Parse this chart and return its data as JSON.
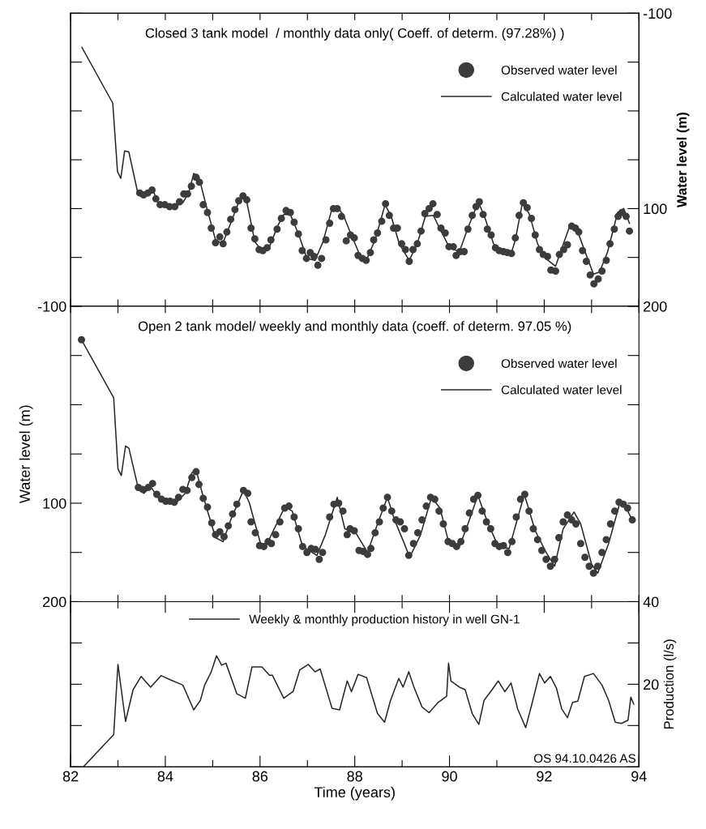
{
  "chart_data": [
    {
      "type": "line",
      "title": "Closed 3 tank model  / monthly data only( Coeff. of determ. (97.28%) )",
      "y2label": "Water level (m)",
      "xlim": [
        82,
        94
      ],
      "xticks": [
        {
          "value": 82,
          "label": null
        },
        {
          "value": 83,
          "label": null
        },
        {
          "value": 84,
          "label": null
        },
        {
          "value": 85,
          "label": null
        },
        {
          "value": 86,
          "label": null
        },
        {
          "value": 87,
          "label": null
        },
        {
          "value": 88,
          "label": null
        },
        {
          "value": 89,
          "label": null
        },
        {
          "value": 90,
          "label": null
        },
        {
          "value": 91,
          "label": null
        },
        {
          "value": 92,
          "label": null
        },
        {
          "value": 93,
          "label": null
        },
        {
          "value": 94,
          "label": null
        }
      ],
      "y2lim": [
        200,
        -100
      ],
      "y2ticks": [
        -100,
        {
          "value": -50,
          "label": null
        },
        {
          "value": 0,
          "label": null
        },
        {
          "value": 50,
          "label": null
        },
        100,
        {
          "value": 150,
          "label": null
        },
        200
      ],
      "tick_labels": "y",
      "legend": "top right",
      "grid": false,
      "series": [
        {
          "name": "Observed water level",
          "type": "scatter",
          "axis": "y2",
          "marker": "circle",
          "color": "#3c3c3c",
          "x": [
            83.46,
            83.54,
            83.63,
            83.72,
            83.8,
            83.89,
            83.99,
            84.09,
            84.2,
            84.3,
            84.39,
            84.47,
            84.55,
            84.65,
            84.72,
            84.8,
            84.89,
            84.97,
            85.06,
            85.15,
            85.22,
            85.3,
            85.38,
            85.47,
            85.55,
            85.64,
            85.72,
            85.81,
            85.89,
            85.98,
            86.06,
            86.15,
            86.23,
            86.36,
            86.45,
            86.55,
            86.64,
            86.72,
            86.81,
            86.89,
            86.98,
            87.06,
            87.14,
            87.22,
            87.3,
            87.39,
            87.47,
            87.55,
            87.63,
            87.72,
            87.82,
            87.91,
            87.99,
            88.07,
            88.16,
            88.24,
            88.33,
            88.4,
            88.48,
            88.57,
            88.65,
            88.73,
            88.82,
            88.9,
            88.99,
            89.07,
            89.15,
            89.23,
            89.32,
            89.4,
            89.48,
            89.57,
            89.65,
            89.74,
            89.82,
            89.91,
            89.99,
            90.08,
            90.14,
            90.22,
            90.31,
            90.39,
            90.48,
            90.56,
            90.63,
            90.71,
            90.8,
            90.88,
            90.97,
            91.05,
            91.14,
            91.22,
            91.31,
            91.39,
            91.47,
            91.56,
            91.64,
            91.73,
            91.81,
            91.9,
            91.98,
            92.07,
            92.14,
            92.24,
            92.32,
            92.41,
            92.49,
            92.58,
            92.66,
            92.73,
            92.81,
            92.89,
            92.97,
            93.05,
            93.14,
            93.22,
            93.31,
            93.39,
            93.48,
            93.56,
            93.64,
            93.73,
            93.8
          ],
          "values": [
            84,
            86,
            84,
            81,
            90,
            96,
            96,
            98,
            98,
            93,
            85,
            85,
            77,
            68,
            73,
            96,
            104,
            120,
            135,
            129,
            136,
            124,
            111,
            101,
            92,
            87,
            91,
            120,
            131,
            142,
            143,
            140,
            132,
            121,
            110,
            102,
            104,
            114,
            126,
            143,
            151,
            145,
            149,
            158,
            151,
            132,
            115,
            100,
            100,
            108,
            133,
            127,
            130,
            148,
            151,
            153,
            145,
            132,
            125,
            113,
            95,
            107,
            120,
            120,
            136,
            142,
            154,
            142,
            136,
            123,
            105,
            100,
            95,
            106,
            120,
            125,
            139,
            139,
            148,
            144,
            144,
            121,
            107,
            98,
            93,
            106,
            121,
            127,
            140,
            143,
            144,
            145,
            146,
            130,
            107,
            94,
            99,
            110,
            127,
            142,
            147,
            149,
            163,
            164,
            147,
            142,
            137,
            118,
            120,
            124,
            143,
            154,
            168,
            177,
            172,
            164,
            153,
            136,
            121,
            108,
            104,
            108,
            123
          ]
        },
        {
          "name": "Calculated water level",
          "type": "line",
          "axis": "y2",
          "color": "#262626",
          "x": [
            82.24,
            82.89,
            82.99,
            83.06,
            83.14,
            83.23,
            83.41,
            83.57,
            83.73,
            83.88,
            84.2,
            84.37,
            84.5,
            84.6,
            84.71,
            84.89,
            85.06,
            85.21,
            85.38,
            85.6,
            85.72,
            85.89,
            86.02,
            86.19,
            86.38,
            86.5,
            86.64,
            86.82,
            86.99,
            87.16,
            87.33,
            87.52,
            87.64,
            87.77,
            87.91,
            88.11,
            88.26,
            88.43,
            88.64,
            88.77,
            88.94,
            89.15,
            89.32,
            89.49,
            89.66,
            89.8,
            90.0,
            90.21,
            90.38,
            90.61,
            90.76,
            90.93,
            91.09,
            91.31,
            91.39,
            91.54,
            91.69,
            91.86,
            92.03,
            92.24,
            92.42,
            92.56,
            92.66,
            92.83,
            93.04,
            93.17,
            93.34,
            93.55,
            93.68,
            93.8
          ],
          "values": [
            -65,
            -8,
            62,
            69,
            41,
            42,
            82,
            85,
            80,
            98,
            98,
            94,
            83,
            64,
            68,
            102,
            132,
            136,
            115,
            87,
            93,
            134,
            142,
            140,
            117,
            106,
            106,
            127,
            151,
            153,
            134,
            100,
            98,
            108,
            125,
            148,
            151,
            132,
            96,
            108,
            136,
            153,
            136,
            108,
            107,
            121,
            140,
            144,
            121,
            93,
            111,
            136,
            144,
            145,
            132,
            94,
            106,
            136,
            151,
            159,
            134,
            115,
            117,
            140,
            167,
            165,
            144,
            104,
            100,
            115
          ]
        }
      ]
    },
    {
      "type": "line",
      "title": "Open 2 tank model/ weekly and monthly data (coeff. of determ. 97.05 %)",
      "ylabel": "Water level (m)",
      "xlim": [
        82,
        94
      ],
      "xticks": [
        {
          "value": 82,
          "label": null
        },
        {
          "value": 83,
          "label": null
        },
        {
          "value": 84,
          "label": null
        },
        {
          "value": 85,
          "label": null
        },
        {
          "value": 86,
          "label": null
        },
        {
          "value": 87,
          "label": null
        },
        {
          "value": 88,
          "label": null
        },
        {
          "value": 89,
          "label": null
        },
        {
          "value": 90,
          "label": null
        },
        {
          "value": 91,
          "label": null
        },
        {
          "value": 92,
          "label": null
        },
        {
          "value": 93,
          "label": null
        },
        {
          "value": 94,
          "label": null
        }
      ],
      "ylim": [
        200,
        -100
      ],
      "yticks": [
        -100,
        {
          "value": -50,
          "label": null
        },
        {
          "value": 0,
          "label": null
        },
        {
          "value": 50,
          "label": null
        },
        100,
        {
          "value": 150,
          "label": null
        },
        200
      ],
      "tick_labels": "y",
      "legend": "top right",
      "grid": false,
      "series": [
        {
          "name": "Observed water level",
          "type": "scatter",
          "marker": "circle",
          "color": "#3c3c3c",
          "x": [
            82.23,
            83.43,
            83.52,
            83.64,
            83.73,
            83.82,
            83.92,
            84.01,
            84.1,
            84.19,
            84.28,
            84.37,
            84.46,
            84.56,
            84.65,
            84.71,
            84.8,
            84.89,
            84.98,
            85.06,
            85.15,
            85.24,
            85.33,
            85.42,
            85.51,
            85.65,
            85.74,
            85.81,
            85.9,
            85.99,
            86.08,
            86.17,
            86.24,
            86.33,
            86.42,
            86.52,
            86.61,
            86.72,
            86.81,
            86.9,
            86.99,
            87.08,
            87.17,
            87.25,
            87.32,
            87.47,
            87.56,
            87.66,
            87.75,
            87.84,
            87.9,
            87.99,
            88.09,
            88.18,
            88.27,
            88.34,
            88.43,
            88.52,
            88.6,
            88.69,
            88.78,
            88.87,
            88.96,
            89.05,
            89.14,
            89.24,
            89.33,
            89.42,
            89.51,
            89.6,
            89.69,
            89.78,
            89.87,
            89.97,
            90.06,
            90.15,
            90.24,
            90.33,
            90.42,
            90.51,
            90.6,
            90.69,
            90.78,
            90.87,
            90.96,
            91.05,
            91.14,
            91.23,
            91.32,
            91.41,
            91.5,
            91.59,
            91.68,
            91.77,
            91.86,
            91.95,
            92.04,
            92.13,
            92.22,
            92.31,
            92.4,
            92.49,
            92.58,
            92.67,
            92.77,
            92.86,
            92.95,
            93.04,
            93.13,
            93.22,
            93.31,
            93.4,
            93.49,
            93.58,
            93.67,
            93.76,
            93.86
          ],
          "values": [
            -66,
            84,
            86,
            84,
            80,
            91,
            96,
            98,
            98,
            99,
            94,
            86,
            87,
            74,
            68,
            81,
            95,
            104,
            120,
            132,
            129,
            134,
            123,
            111,
            101,
            87,
            90,
            119,
            130,
            143,
            144,
            139,
            141,
            132,
            119,
            105,
            103,
            114,
            126,
            144,
            150,
            146,
            147,
            157,
            150,
            114,
            101,
            100,
            108,
            132,
            126,
            128,
            148,
            149,
            152,
            146,
            130,
            119,
            105,
            94,
            108,
            117,
            119,
            126,
            153,
            141,
            130,
            117,
            103,
            94,
            96,
            108,
            121,
            139,
            141,
            144,
            139,
            126,
            110,
            96,
            92,
            108,
            119,
            126,
            141,
            144,
            143,
            150,
            139,
            114,
            96,
            91,
            108,
            126,
            137,
            148,
            157,
            164,
            157,
            135,
            119,
            112,
            117,
            121,
            141,
            155,
            164,
            171,
            164,
            150,
            137,
            121,
            108,
            99,
            101,
            105,
            117
          ]
        },
        {
          "name": "Calculated water level",
          "type": "line",
          "color": "#262626",
          "x": [
            82.23,
            82.91,
            83.0,
            83.07,
            83.16,
            83.23,
            83.43,
            83.55,
            83.69,
            83.87,
            84.24,
            84.42,
            84.56,
            84.65,
            84.78,
            85.06,
            85.22,
            85.38,
            85.65,
            85.77,
            86.01,
            86.15,
            86.52,
            86.68,
            86.9,
            87.2,
            87.38,
            87.63,
            87.79,
            88.02,
            88.27,
            88.48,
            88.69,
            88.84,
            89.03,
            89.16,
            89.39,
            89.62,
            89.8,
            89.98,
            90.21,
            90.39,
            90.6,
            90.8,
            91.03,
            91.26,
            91.58,
            91.81,
            92.04,
            92.22,
            92.4,
            92.63,
            92.77,
            93.0,
            93.13,
            93.36,
            93.59,
            93.72,
            93.86
          ],
          "values": [
            -66,
            -7,
            65,
            72,
            42,
            44,
            85,
            90,
            83,
            96,
            99,
            90,
            69,
            66,
            90,
            135,
            139,
            117,
            87,
            99,
            141,
            141,
            104,
            108,
            144,
            153,
            132,
            94,
            126,
            130,
            150,
            121,
            94,
            117,
            139,
            155,
            132,
            94,
            105,
            139,
            144,
            121,
            92,
            119,
            144,
            146,
            91,
            128,
            150,
            164,
            126,
            109,
            121,
            162,
            171,
            141,
            101,
            104,
            117
          ]
        }
      ]
    },
    {
      "type": "line",
      "xlabel": "Time (years)",
      "y2label": "Production (l/s)",
      "xlim": [
        82,
        94
      ],
      "xticks": [
        82,
        {
          "value": 83,
          "label": null
        },
        84,
        {
          "value": 85,
          "label": null
        },
        86,
        {
          "value": 87,
          "label": null
        },
        88,
        {
          "value": 89,
          "label": null
        },
        90,
        {
          "value": 91,
          "label": null
        },
        92,
        {
          "value": 93,
          "label": null
        },
        94
      ],
      "y2lim": [
        0,
        40
      ],
      "y2ticks": [
        {
          "value": 0,
          "label": null
        },
        {
          "value": 10,
          "label": null
        },
        20,
        {
          "value": 30,
          "label": null
        },
        40
      ],
      "legend": "top",
      "grid": false,
      "annotations": [
        "OS 94.10.0426 AS"
      ],
      "series": [
        {
          "name": "Weekly & monthly production history in well GN-1",
          "type": "line",
          "axis": "y2",
          "color": "#262626",
          "x": [
            82.27,
            82.91,
            83.0,
            83.16,
            83.32,
            83.49,
            83.69,
            83.91,
            84.1,
            84.37,
            84.6,
            84.74,
            84.83,
            84.97,
            85.08,
            85.19,
            85.28,
            85.51,
            85.69,
            85.83,
            86.04,
            86.2,
            86.26,
            86.5,
            86.7,
            86.84,
            87.02,
            87.16,
            87.27,
            87.52,
            87.68,
            87.84,
            87.93,
            88.07,
            88.25,
            88.48,
            88.63,
            88.75,
            88.84,
            88.93,
            89.02,
            89.14,
            89.25,
            89.42,
            89.57,
            89.76,
            89.94,
            89.98,
            90.03,
            90.21,
            90.33,
            90.48,
            90.62,
            90.73,
            90.9,
            91.03,
            91.17,
            91.3,
            91.44,
            91.61,
            91.76,
            91.9,
            92.01,
            92.13,
            92.26,
            92.37,
            92.49,
            92.6,
            92.71,
            92.85,
            93.04,
            93.22,
            93.36,
            93.5,
            93.63,
            93.77,
            93.83,
            93.89
          ],
          "values": [
            0,
            7.8,
            24.8,
            11,
            18.7,
            21.9,
            19.3,
            22.1,
            21.1,
            19.8,
            13.8,
            16.1,
            19.8,
            23,
            26.9,
            24.6,
            25.1,
            17.7,
            16.6,
            24.2,
            24.2,
            22.2,
            22.2,
            16.6,
            18.3,
            23.5,
            24.8,
            23,
            23.7,
            14.2,
            13.8,
            20.8,
            18.2,
            22.4,
            21.6,
            12.9,
            10.8,
            15.9,
            18.7,
            21.4,
            19.3,
            23,
            19.3,
            14.5,
            13.1,
            15.6,
            17.1,
            25.1,
            20.8,
            19.3,
            18.7,
            12.9,
            10.3,
            16.1,
            18.7,
            20.8,
            18.2,
            20.3,
            14,
            9.5,
            16.1,
            22.6,
            20.3,
            21.9,
            19,
            14,
            11.9,
            15.6,
            15.9,
            21.9,
            22.6,
            19.8,
            16.1,
            10.8,
            10.5,
            11.3,
            16.9,
            15.2
          ]
        }
      ]
    }
  ]
}
